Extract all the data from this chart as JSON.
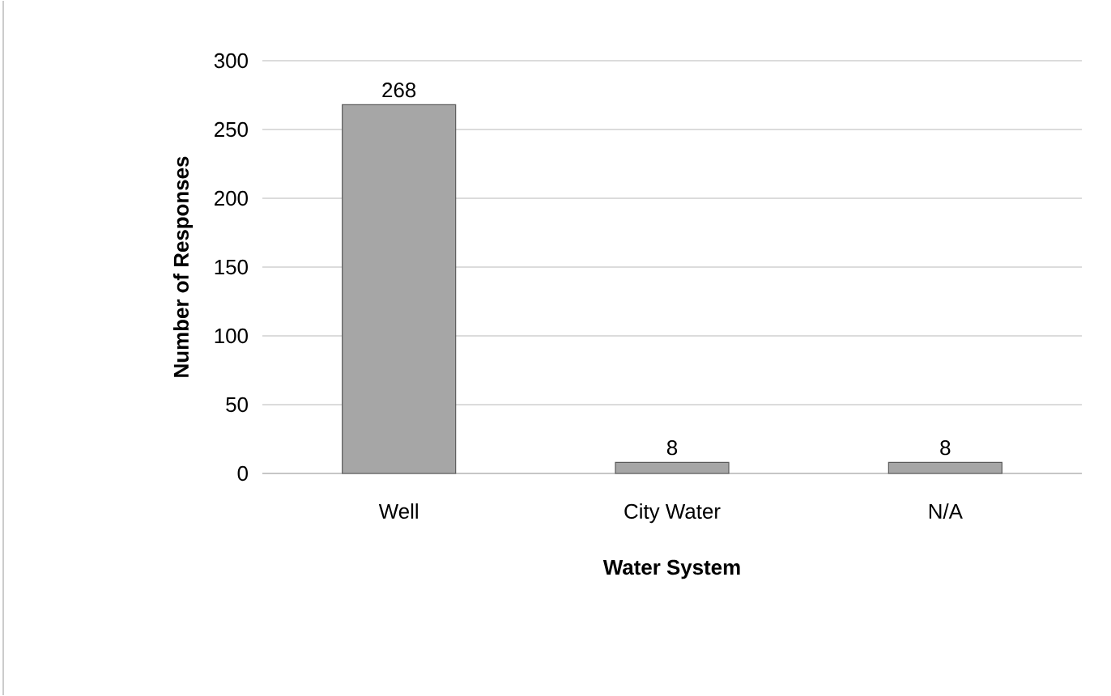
{
  "chart_data": {
    "type": "bar",
    "xlabel": "Water System",
    "ylabel": "Number of Responses",
    "categories": [
      "Well",
      "City Water",
      "N/A"
    ],
    "values": [
      268,
      8,
      8
    ],
    "color": "#a6a6a6",
    "ylim": [
      0,
      300
    ],
    "yticks": [
      0,
      50,
      100,
      150,
      200,
      250,
      300
    ],
    "grid": "y",
    "data_labels": true
  }
}
